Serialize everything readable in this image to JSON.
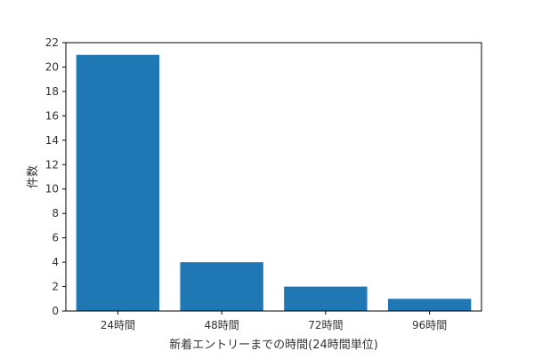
{
  "chart_data": {
    "type": "bar",
    "categories": [
      "24時間",
      "48時間",
      "72時間",
      "96時間"
    ],
    "values": [
      21,
      4,
      2,
      1
    ],
    "xlabel": "新着エントリーまでの時間(24時間単位)",
    "ylabel": "件数",
    "ylim": [
      0,
      22
    ],
    "yticks": [
      0,
      2,
      4,
      6,
      8,
      10,
      12,
      14,
      16,
      18,
      20,
      22
    ],
    "grid": false,
    "bar_color": "#1f77b4"
  }
}
